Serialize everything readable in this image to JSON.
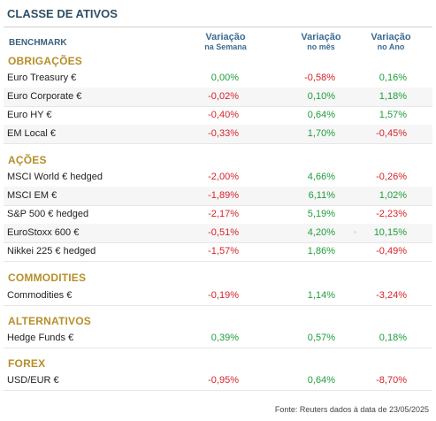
{
  "title": "CLASSE DE ATIVOS",
  "header": {
    "benchmark": "BENCHMARK",
    "week_l1": "Variação",
    "week_l2": "na Semana",
    "month_l1": "Variação",
    "month_l2": "no mês",
    "year_l1": "Variação",
    "year_l2": "no Ano"
  },
  "sections": [
    {
      "title": "OBRIGAÇÕES",
      "rows": [
        {
          "name": "Euro Treasury €",
          "week": "0,00%",
          "month": "-0,58%",
          "year": "0,16%"
        },
        {
          "name": "Euro Corporate €",
          "week": "-0,02%",
          "month": "0,10%",
          "year": "1,18%"
        },
        {
          "name": "Euro HY €",
          "week": "-0,40%",
          "month": "0,64%",
          "year": "1,57%"
        },
        {
          "name": "EM Local €",
          "week": "-0,33%",
          "month": "1,70%",
          "year": "-0,45%"
        }
      ]
    },
    {
      "title": "AÇÕES",
      "rows": [
        {
          "name": "MSCI World € hedged",
          "week": "-2,00%",
          "month": "4,66%",
          "year": "-0,26%"
        },
        {
          "name": "MSCI EM €",
          "week": "-1,89%",
          "month": "6,11%",
          "year": "1,02%"
        },
        {
          "name": "S&P 500 € hedged",
          "week": "-2,17%",
          "month": "5,19%",
          "year": "-2,23%"
        },
        {
          "name": "EuroStoxx 600 €",
          "week": "-0,51%",
          "month": "4,20%",
          "year": "10,15%"
        },
        {
          "name": "Nikkei 225 € hedged",
          "week": "-1,57%",
          "month": "1,86%",
          "year": "-0,49%"
        }
      ]
    },
    {
      "title": "COMMODITIES",
      "rows": [
        {
          "name": "Commodities €",
          "week": "-0,19%",
          "month": "1,14%",
          "year": "-3,24%"
        }
      ]
    },
    {
      "title": "ALTERNATIVOS",
      "rows": [
        {
          "name": "Hedge Funds €",
          "week": "0,39%",
          "month": "0,57%",
          "year": "0,18%"
        }
      ]
    },
    {
      "title": "FOREX",
      "rows": [
        {
          "name": "USD/EUR €",
          "week": "-0,95%",
          "month": "0,64%",
          "year": "-8,70%"
        }
      ]
    }
  ],
  "colors": {
    "positive": "#1e9e3a",
    "negative": "#d4232a",
    "section": "#b68f2b",
    "header": "#3d6d92"
  },
  "footer": "Fonte: Reuters dados à data de 23/05/2025"
}
